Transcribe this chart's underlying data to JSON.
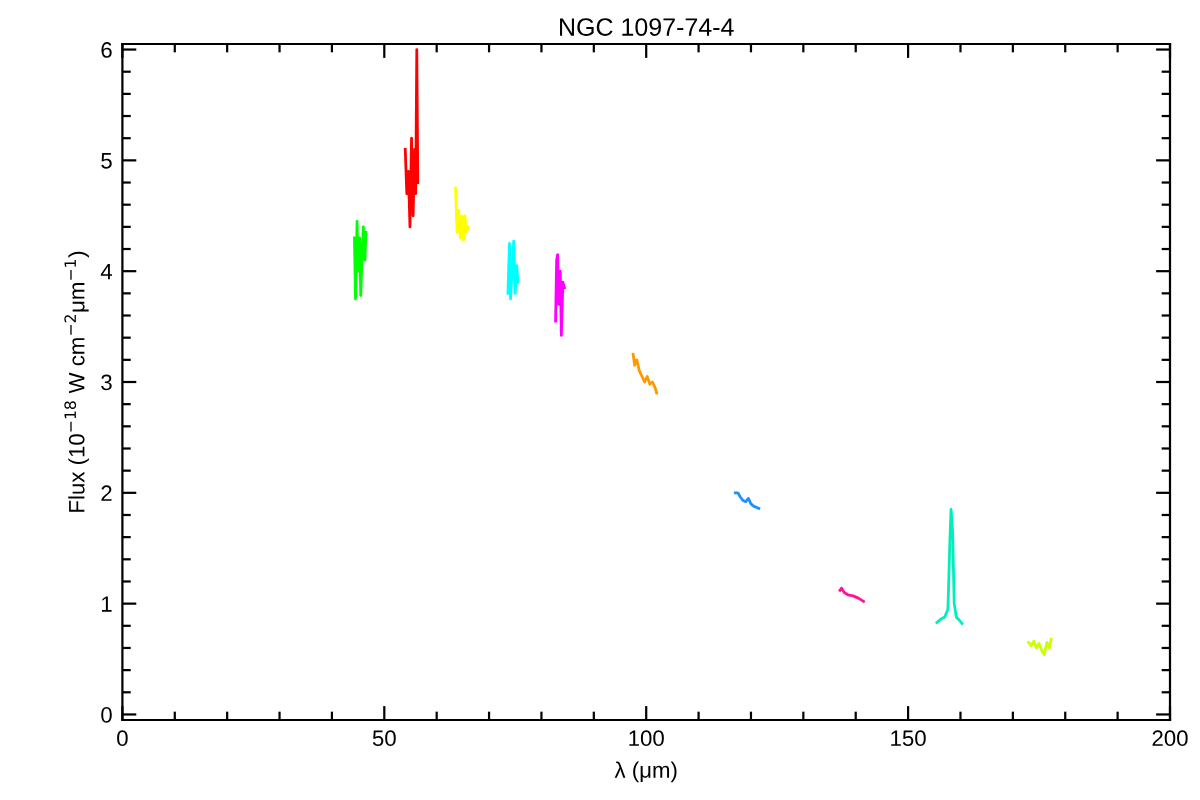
{
  "chart_data": {
    "type": "line",
    "title": "NGC 1097-74-4",
    "xlabel": "λ (μm)",
    "ylabel": "Flux (10$^{−18}$ W cm$^{−2}$μm$^{−1}$)",
    "xlim": [
      0,
      200
    ],
    "ylim": [
      -0.05,
      6.05
    ],
    "xticks": [
      0,
      {
        "value": 10,
        "label": null
      },
      {
        "value": 20,
        "label": null
      },
      {
        "value": 30,
        "label": null
      },
      {
        "value": 40,
        "label": null
      },
      50,
      {
        "value": 60,
        "label": null
      },
      {
        "value": 70,
        "label": null
      },
      {
        "value": 80,
        "label": null
      },
      {
        "value": 90,
        "label": null
      },
      100,
      {
        "value": 110,
        "label": null
      },
      {
        "value": 120,
        "label": null
      },
      {
        "value": 130,
        "label": null
      },
      {
        "value": 140,
        "label": null
      },
      150,
      {
        "value": 160,
        "label": null
      },
      {
        "value": 170,
        "label": null
      },
      {
        "value": 180,
        "label": null
      },
      {
        "value": 190,
        "label": null
      },
      200
    ],
    "yticks": [
      0,
      {
        "value": 0.2,
        "label": null
      },
      {
        "value": 0.4,
        "label": null
      },
      {
        "value": 0.6,
        "label": null
      },
      {
        "value": 0.8,
        "label": null
      },
      1,
      {
        "value": 1.2,
        "label": null
      },
      {
        "value": 1.4,
        "label": null
      },
      {
        "value": 1.6,
        "label": null
      },
      {
        "value": 1.8,
        "label": null
      },
      2,
      {
        "value": 2.2,
        "label": null
      },
      {
        "value": 2.4,
        "label": null
      },
      {
        "value": 2.6,
        "label": null
      },
      {
        "value": 2.8,
        "label": null
      },
      3,
      {
        "value": 3.2,
        "label": null
      },
      {
        "value": 3.4,
        "label": null
      },
      {
        "value": 3.6,
        "label": null
      },
      {
        "value": 3.8,
        "label": null
      },
      4,
      {
        "value": 4.2,
        "label": null
      },
      {
        "value": 4.4,
        "label": null
      },
      {
        "value": 4.6,
        "label": null
      },
      {
        "value": 4.8,
        "label": null
      },
      5,
      {
        "value": 5.2,
        "label": null
      },
      {
        "value": 5.4,
        "label": null
      },
      {
        "value": 5.6,
        "label": null
      },
      {
        "value": 5.8,
        "label": null
      },
      6
    ],
    "grid": false,
    "line_style": "solid",
    "series": [
      {
        "color": "#00ff00",
        "x": [
          44.3,
          44.5,
          44.8,
          45.0,
          45.3,
          45.5,
          45.8,
          46.0,
          46.3,
          46.5
        ],
        "values": [
          4.3,
          3.75,
          4.45,
          4.0,
          4.3,
          3.78,
          4.2,
          4.4,
          4.1,
          4.35
        ]
      },
      {
        "color": "#ff0000",
        "x": [
          54.0,
          54.3,
          54.6,
          54.9,
          55.2,
          55.5,
          55.8,
          56.0,
          56.2,
          56.4
        ],
        "values": [
          5.1,
          4.7,
          4.9,
          4.4,
          5.2,
          4.5,
          5.1,
          4.7,
          6.0,
          4.8
        ]
      },
      {
        "color": "#ffff00",
        "x": [
          63.6,
          63.9,
          64.2,
          64.5,
          64.8,
          65.1,
          65.4,
          65.7,
          66.0
        ],
        "values": [
          4.75,
          4.35,
          4.55,
          4.3,
          4.5,
          4.28,
          4.5,
          4.35,
          4.4
        ]
      },
      {
        "color": "#00ffff",
        "x": [
          73.6,
          73.9,
          74.1,
          74.4,
          74.7,
          75.0,
          75.3,
          75.5
        ],
        "values": [
          3.8,
          4.25,
          3.75,
          4.0,
          4.27,
          3.8,
          4.05,
          3.9
        ]
      },
      {
        "color": "#ff00ff",
        "x": [
          82.7,
          82.9,
          83.1,
          83.3,
          83.6,
          83.8,
          84.1,
          84.4
        ],
        "values": [
          3.55,
          4.1,
          4.15,
          3.7,
          4.0,
          3.42,
          3.9,
          3.85
        ]
      },
      {
        "color": "#ff9900",
        "x": [
          97.5,
          97.8,
          98.2,
          98.7,
          99.2,
          99.7,
          100.2,
          100.7,
          101.2,
          101.7,
          102.0
        ],
        "values": [
          3.25,
          3.15,
          3.2,
          3.1,
          3.05,
          3.0,
          3.05,
          2.98,
          3.0,
          2.95,
          2.9
        ]
      },
      {
        "color": "#1e90ff",
        "x": [
          117.0,
          117.5,
          118.0,
          118.5,
          119.0,
          119.5,
          120.0,
          120.5,
          121.0,
          121.5
        ],
        "values": [
          2.0,
          2.0,
          1.96,
          1.93,
          1.92,
          1.95,
          1.9,
          1.88,
          1.87,
          1.86
        ]
      },
      {
        "color": "#ff1493",
        "x": [
          137.0,
          137.3,
          137.8,
          138.5,
          139.5,
          140.5,
          141.5
        ],
        "values": [
          1.12,
          1.14,
          1.1,
          1.08,
          1.07,
          1.05,
          1.02
        ]
      },
      {
        "color": "#00eebb",
        "x": [
          155.5,
          156.2,
          157.0,
          157.6,
          158.0,
          158.2,
          158.5,
          158.8,
          159.2,
          159.8,
          160.3
        ],
        "values": [
          0.83,
          0.86,
          0.88,
          0.95,
          1.6,
          1.85,
          1.65,
          1.0,
          0.88,
          0.85,
          0.82
        ]
      },
      {
        "color": "#ccff00",
        "x": [
          173.0,
          173.5,
          174.0,
          174.5,
          175.0,
          175.5,
          176.0,
          176.5,
          177.0,
          177.3
        ],
        "values": [
          0.65,
          0.62,
          0.66,
          0.6,
          0.64,
          0.58,
          0.54,
          0.65,
          0.6,
          0.68
        ]
      }
    ]
  }
}
